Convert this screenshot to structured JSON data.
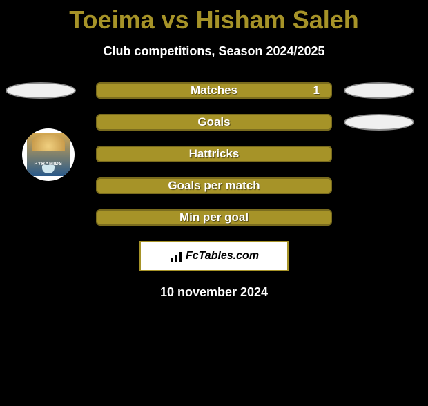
{
  "title": "Toeima vs Hisham Saleh",
  "title_color": "#a69328",
  "subtitle": "Club competitions, Season 2024/2025",
  "subtitle_color": "#ffffff",
  "background_color": "#000000",
  "ellipse": {
    "fill": "#f0f0f0",
    "border": "#888888"
  },
  "bar_colors": {
    "matches": {
      "fill": "#a69328",
      "border": "#7a6c1e"
    },
    "default": {
      "fill": "#a69328",
      "border": "#7a6c1e"
    }
  },
  "rows": [
    {
      "label": "Matches",
      "value": "1",
      "show_left_ellipse": true,
      "show_right_ellipse": true,
      "border_style": "solid"
    },
    {
      "label": "Goals",
      "value": "",
      "show_left_ellipse": false,
      "show_right_ellipse": true,
      "border_style": "solid"
    },
    {
      "label": "Hattricks",
      "value": "",
      "show_left_ellipse": false,
      "show_right_ellipse": false,
      "border_style": "solid"
    },
    {
      "label": "Goals per match",
      "value": "",
      "show_left_ellipse": false,
      "show_right_ellipse": false,
      "border_style": "solid"
    },
    {
      "label": "Min per goal",
      "value": "",
      "show_left_ellipse": false,
      "show_right_ellipse": false,
      "border_style": "solid"
    }
  ],
  "badge": {
    "name": "PYRAMIDS",
    "bg": "#ffffff"
  },
  "attribution": {
    "text": "FcTables.com",
    "box_bg": "#ffffff",
    "box_border": "#a69328",
    "text_color": "#000000"
  },
  "date": "10 november 2024",
  "date_color": "#ffffff"
}
